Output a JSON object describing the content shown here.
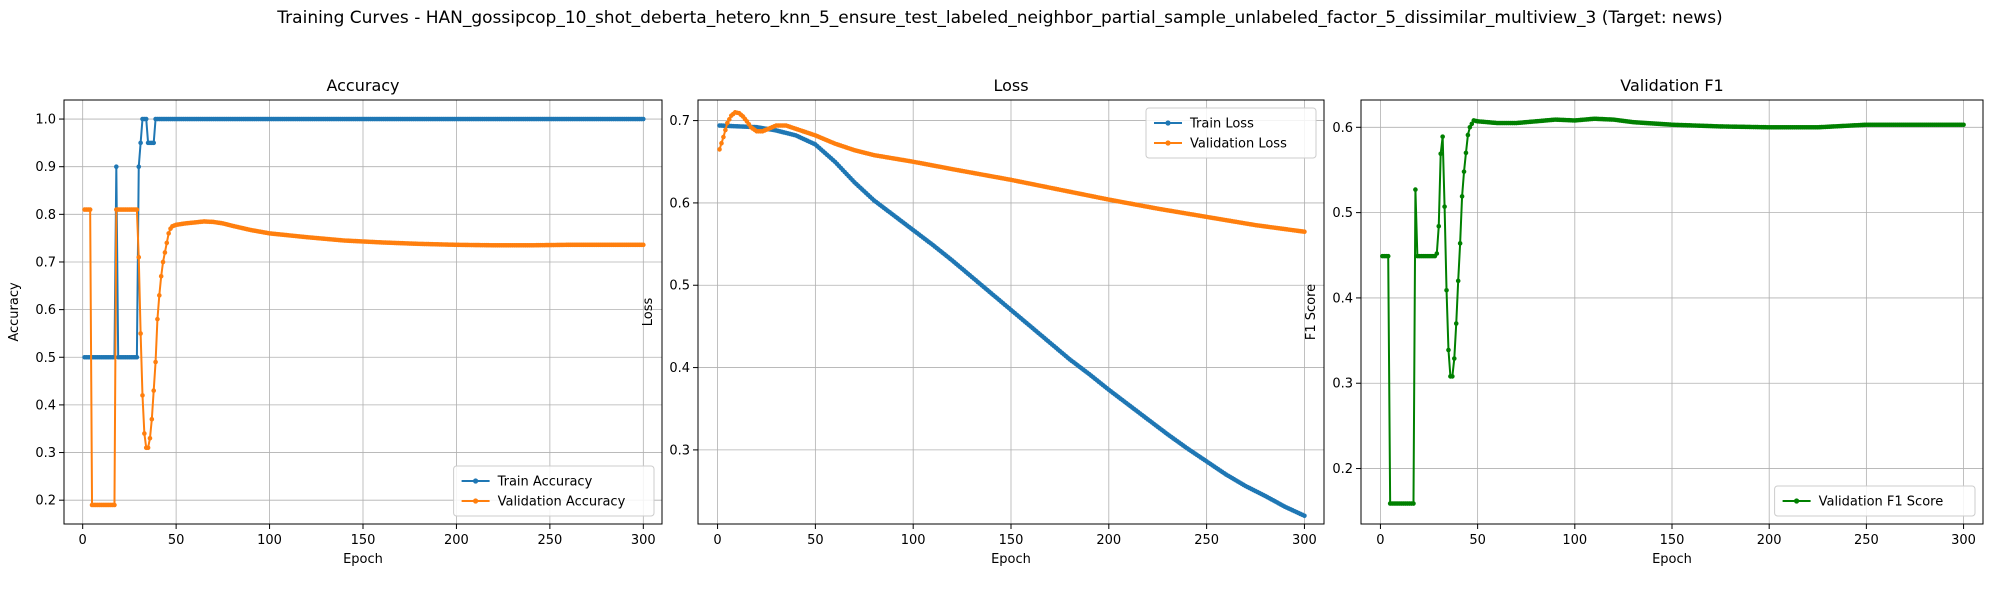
{
  "figure": {
    "suptitle": "Training Curves - HAN_gossipcop_10_shot_deberta_hetero_knn_5_ensure_test_labeled_neighbor_partial_sample_unlabeled_factor_5_dissimilar_multiview_3 (Target: news)"
  },
  "chart_data": [
    {
      "type": "line",
      "title": "Accuracy",
      "xlabel": "Epoch",
      "ylabel": "Accuracy",
      "xlim": [
        -10,
        310
      ],
      "ylim": [
        0.15,
        1.04
      ],
      "xticks": [
        0,
        50,
        100,
        150,
        200,
        250,
        300
      ],
      "yticks": [
        0.2,
        0.3,
        0.4,
        0.5,
        0.6,
        0.7,
        0.8,
        0.9,
        1.0
      ],
      "ytick_labels": [
        "0.2",
        "0.3",
        "0.4",
        "0.5",
        "0.6",
        "0.7",
        "0.8",
        "0.9",
        "1.0"
      ],
      "grid": true,
      "legend": "lower-right",
      "series": [
        {
          "name": "Train Accuracy",
          "color": "#1f77b4",
          "points": [
            [
              1,
              0.5
            ],
            [
              17,
              0.5
            ],
            [
              18,
              0.9
            ],
            [
              19,
              0.5
            ],
            [
              29,
              0.5
            ],
            [
              30,
              0.9
            ],
            [
              31,
              0.95
            ],
            [
              32,
              1.0
            ],
            [
              34,
              1.0
            ],
            [
              35,
              0.95
            ],
            [
              38,
              0.95
            ],
            [
              39,
              1.0
            ],
            [
              300,
              1.0
            ]
          ]
        },
        {
          "name": "Validation Accuracy",
          "color": "#ff7f0e",
          "points": [
            [
              1,
              0.81
            ],
            [
              4,
              0.81
            ],
            [
              5,
              0.19
            ],
            [
              17,
              0.19
            ],
            [
              18,
              0.81
            ],
            [
              29,
              0.81
            ],
            [
              30,
              0.71
            ],
            [
              31,
              0.55
            ],
            [
              32,
              0.42
            ],
            [
              33,
              0.34
            ],
            [
              34,
              0.31
            ],
            [
              35,
              0.31
            ],
            [
              36,
              0.33
            ],
            [
              37,
              0.37
            ],
            [
              38,
              0.43
            ],
            [
              39,
              0.49
            ],
            [
              40,
              0.58
            ],
            [
              41,
              0.63
            ],
            [
              42,
              0.67
            ],
            [
              43,
              0.7
            ],
            [
              44,
              0.72
            ],
            [
              45,
              0.74
            ],
            [
              46,
              0.76
            ],
            [
              47,
              0.77
            ],
            [
              48,
              0.775
            ],
            [
              50,
              0.778
            ],
            [
              55,
              0.781
            ],
            [
              60,
              0.783
            ],
            [
              65,
              0.785
            ],
            [
              70,
              0.784
            ],
            [
              75,
              0.781
            ],
            [
              80,
              0.776
            ],
            [
              90,
              0.767
            ],
            [
              100,
              0.76
            ],
            [
              120,
              0.752
            ],
            [
              140,
              0.745
            ],
            [
              160,
              0.741
            ],
            [
              180,
              0.738
            ],
            [
              200,
              0.736
            ],
            [
              220,
              0.735
            ],
            [
              240,
              0.735
            ],
            [
              260,
              0.736
            ],
            [
              280,
              0.736
            ],
            [
              300,
              0.736
            ]
          ]
        }
      ]
    },
    {
      "type": "line",
      "title": "Loss",
      "xlabel": "Epoch",
      "ylabel": "Loss",
      "xlim": [
        -10,
        310
      ],
      "ylim": [
        0.21,
        0.725
      ],
      "xticks": [
        0,
        50,
        100,
        150,
        200,
        250,
        300
      ],
      "yticks": [
        0.2,
        0.3,
        0.4,
        0.5,
        0.6,
        0.7
      ],
      "ytick_labels": [
        "0.2",
        "0.3",
        "0.4",
        "0.5",
        "0.6",
        "0.7"
      ],
      "grid": true,
      "legend": "upper-right",
      "series": [
        {
          "name": "Train Loss",
          "color": "#1f77b4",
          "points": [
            [
              1,
              0.694
            ],
            [
              10,
              0.693
            ],
            [
              20,
              0.692
            ],
            [
              30,
              0.688
            ],
            [
              40,
              0.682
            ],
            [
              50,
              0.671
            ],
            [
              60,
              0.65
            ],
            [
              70,
              0.625
            ],
            [
              80,
              0.603
            ],
            [
              90,
              0.585
            ],
            [
              100,
              0.567
            ],
            [
              110,
              0.549
            ],
            [
              120,
              0.53
            ],
            [
              130,
              0.51
            ],
            [
              140,
              0.49
            ],
            [
              150,
              0.47
            ],
            [
              160,
              0.45
            ],
            [
              170,
              0.43
            ],
            [
              180,
              0.41
            ],
            [
              190,
              0.392
            ],
            [
              200,
              0.373
            ],
            [
              210,
              0.355
            ],
            [
              220,
              0.337
            ],
            [
              230,
              0.319
            ],
            [
              240,
              0.302
            ],
            [
              250,
              0.286
            ],
            [
              260,
              0.27
            ],
            [
              270,
              0.256
            ],
            [
              280,
              0.244
            ],
            [
              290,
              0.231
            ],
            [
              300,
              0.22
            ]
          ]
        },
        {
          "name": "Validation Loss",
          "color": "#ff7f0e",
          "points": [
            [
              1,
              0.665
            ],
            [
              3,
              0.68
            ],
            [
              5,
              0.697
            ],
            [
              7,
              0.706
            ],
            [
              9,
              0.71
            ],
            [
              11,
              0.709
            ],
            [
              13,
              0.705
            ],
            [
              15,
              0.699
            ],
            [
              17,
              0.692
            ],
            [
              20,
              0.687
            ],
            [
              23,
              0.687
            ],
            [
              26,
              0.69
            ],
            [
              30,
              0.694
            ],
            [
              35,
              0.694
            ],
            [
              40,
              0.69
            ],
            [
              50,
              0.682
            ],
            [
              60,
              0.672
            ],
            [
              70,
              0.664
            ],
            [
              80,
              0.658
            ],
            [
              100,
              0.65
            ],
            [
              120,
              0.641
            ],
            [
              150,
              0.628
            ],
            [
              175,
              0.616
            ],
            [
              200,
              0.604
            ],
            [
              225,
              0.593
            ],
            [
              250,
              0.583
            ],
            [
              275,
              0.573
            ],
            [
              300,
              0.565
            ]
          ]
        }
      ]
    },
    {
      "type": "line",
      "title": "Validation F1",
      "xlabel": "Epoch",
      "ylabel": "F1 Score",
      "xlim": [
        -10,
        310
      ],
      "ylim": [
        0.135,
        0.632
      ],
      "xticks": [
        0,
        50,
        100,
        150,
        200,
        250,
        300
      ],
      "yticks": [
        0.2,
        0.3,
        0.4,
        0.5,
        0.6
      ],
      "ytick_labels": [
        "0.2",
        "0.3",
        "0.4",
        "0.5",
        "0.6"
      ],
      "grid": true,
      "legend": "lower-right",
      "series": [
        {
          "name": "Validation F1 Score",
          "color": "#008000",
          "points": [
            [
              1,
              0.449
            ],
            [
              4,
              0.449
            ],
            [
              5,
              0.159
            ],
            [
              17,
              0.159
            ],
            [
              18,
              0.527
            ],
            [
              19,
              0.449
            ],
            [
              28,
              0.449
            ],
            [
              29,
              0.452
            ],
            [
              30,
              0.484
            ],
            [
              31,
              0.569
            ],
            [
              32,
              0.589
            ],
            [
              33,
              0.507
            ],
            [
              34,
              0.409
            ],
            [
              35,
              0.339
            ],
            [
              36,
              0.308
            ],
            [
              37,
              0.308
            ],
            [
              38,
              0.329
            ],
            [
              39,
              0.37
            ],
            [
              40,
              0.42
            ],
            [
              41,
              0.464
            ],
            [
              42,
              0.519
            ],
            [
              43,
              0.548
            ],
            [
              44,
              0.57
            ],
            [
              45,
              0.591
            ],
            [
              46,
              0.6
            ],
            [
              47,
              0.604
            ],
            [
              48,
              0.608
            ],
            [
              50,
              0.607
            ],
            [
              55,
              0.606
            ],
            [
              60,
              0.605
            ],
            [
              70,
              0.605
            ],
            [
              80,
              0.607
            ],
            [
              90,
              0.609
            ],
            [
              100,
              0.608
            ],
            [
              110,
              0.61
            ],
            [
              120,
              0.609
            ],
            [
              130,
              0.606
            ],
            [
              150,
              0.603
            ],
            [
              175,
              0.601
            ],
            [
              200,
              0.6
            ],
            [
              225,
              0.6
            ],
            [
              250,
              0.603
            ],
            [
              275,
              0.603
            ],
            [
              300,
              0.603
            ]
          ]
        }
      ]
    }
  ]
}
